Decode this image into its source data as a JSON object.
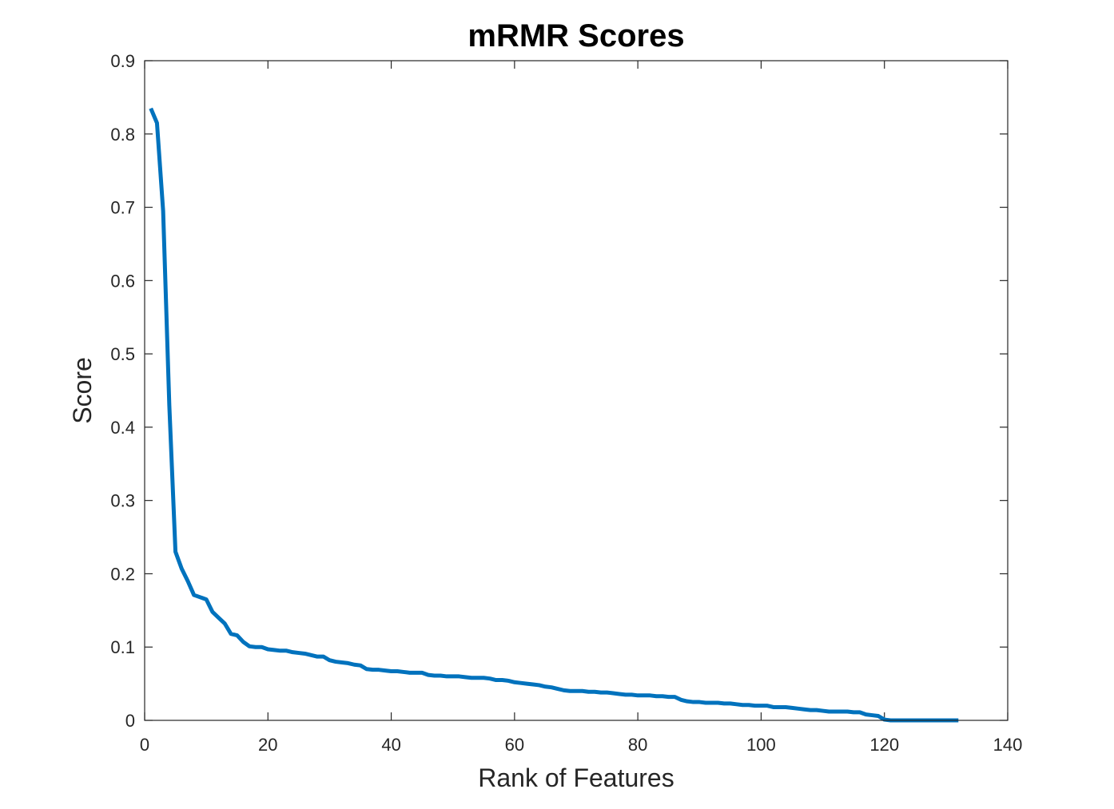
{
  "chart_data": {
    "type": "line",
    "title": "mRMR Scores",
    "xlabel": "Rank of Features",
    "ylabel": "Score",
    "xlim": [
      0,
      140
    ],
    "ylim": [
      0,
      0.9
    ],
    "xticks": [
      0,
      20,
      40,
      60,
      80,
      100,
      120,
      140
    ],
    "yticks": [
      0,
      0.1,
      0.2,
      0.3,
      0.4,
      0.5,
      0.6,
      0.7,
      0.8,
      0.9
    ],
    "xtick_labels": [
      "0",
      "20",
      "40",
      "60",
      "80",
      "100",
      "120",
      "140"
    ],
    "ytick_labels": [
      "0",
      "0.1",
      "0.2",
      "0.3",
      "0.4",
      "0.5",
      "0.6",
      "0.7",
      "0.8",
      "0.9"
    ],
    "grid": false,
    "line_color": "#0072BD",
    "series": [
      {
        "x": [
          1,
          2,
          3,
          4,
          5,
          6,
          7,
          8,
          9,
          10,
          11,
          12,
          13,
          14,
          15,
          16,
          17,
          18,
          19,
          20,
          21,
          22,
          23,
          24,
          25,
          26,
          27,
          28,
          29,
          30,
          31,
          32,
          33,
          34,
          35,
          36,
          37,
          38,
          39,
          40,
          41,
          42,
          43,
          44,
          45,
          46,
          47,
          48,
          49,
          50,
          51,
          52,
          53,
          54,
          55,
          56,
          57,
          58,
          59,
          60,
          61,
          62,
          63,
          64,
          65,
          66,
          67,
          68,
          69,
          70,
          71,
          72,
          73,
          74,
          75,
          76,
          77,
          78,
          79,
          80,
          81,
          82,
          83,
          84,
          85,
          86,
          87,
          88,
          89,
          90,
          91,
          92,
          93,
          94,
          95,
          96,
          97,
          98,
          99,
          100,
          101,
          102,
          103,
          104,
          105,
          106,
          107,
          108,
          109,
          110,
          111,
          112,
          113,
          114,
          115,
          116,
          117,
          118,
          119,
          120,
          121,
          122,
          123,
          124,
          125,
          126,
          127,
          128,
          129,
          130,
          131,
          132
        ],
        "y": [
          0.835,
          0.815,
          0.695,
          0.43,
          0.23,
          0.207,
          0.19,
          0.171,
          0.168,
          0.165,
          0.148,
          0.14,
          0.132,
          0.118,
          0.116,
          0.107,
          0.101,
          0.1,
          0.1,
          0.097,
          0.096,
          0.095,
          0.095,
          0.093,
          0.092,
          0.091,
          0.089,
          0.087,
          0.087,
          0.082,
          0.08,
          0.079,
          0.078,
          0.076,
          0.075,
          0.07,
          0.069,
          0.069,
          0.068,
          0.067,
          0.067,
          0.066,
          0.065,
          0.065,
          0.065,
          0.062,
          0.061,
          0.061,
          0.06,
          0.06,
          0.06,
          0.059,
          0.058,
          0.058,
          0.058,
          0.057,
          0.055,
          0.055,
          0.054,
          0.052,
          0.051,
          0.05,
          0.049,
          0.048,
          0.046,
          0.045,
          0.043,
          0.041,
          0.04,
          0.04,
          0.04,
          0.039,
          0.039,
          0.038,
          0.038,
          0.037,
          0.036,
          0.035,
          0.035,
          0.034,
          0.034,
          0.034,
          0.033,
          0.033,
          0.032,
          0.032,
          0.028,
          0.026,
          0.025,
          0.025,
          0.024,
          0.024,
          0.024,
          0.023,
          0.023,
          0.022,
          0.021,
          0.021,
          0.02,
          0.02,
          0.02,
          0.018,
          0.018,
          0.018,
          0.017,
          0.016,
          0.015,
          0.014,
          0.014,
          0.013,
          0.012,
          0.012,
          0.012,
          0.012,
          0.011,
          0.011,
          0.008,
          0.007,
          0.006,
          0.001,
          0,
          0,
          0,
          0,
          0,
          0,
          0,
          0,
          0,
          0,
          0,
          0
        ]
      }
    ]
  }
}
